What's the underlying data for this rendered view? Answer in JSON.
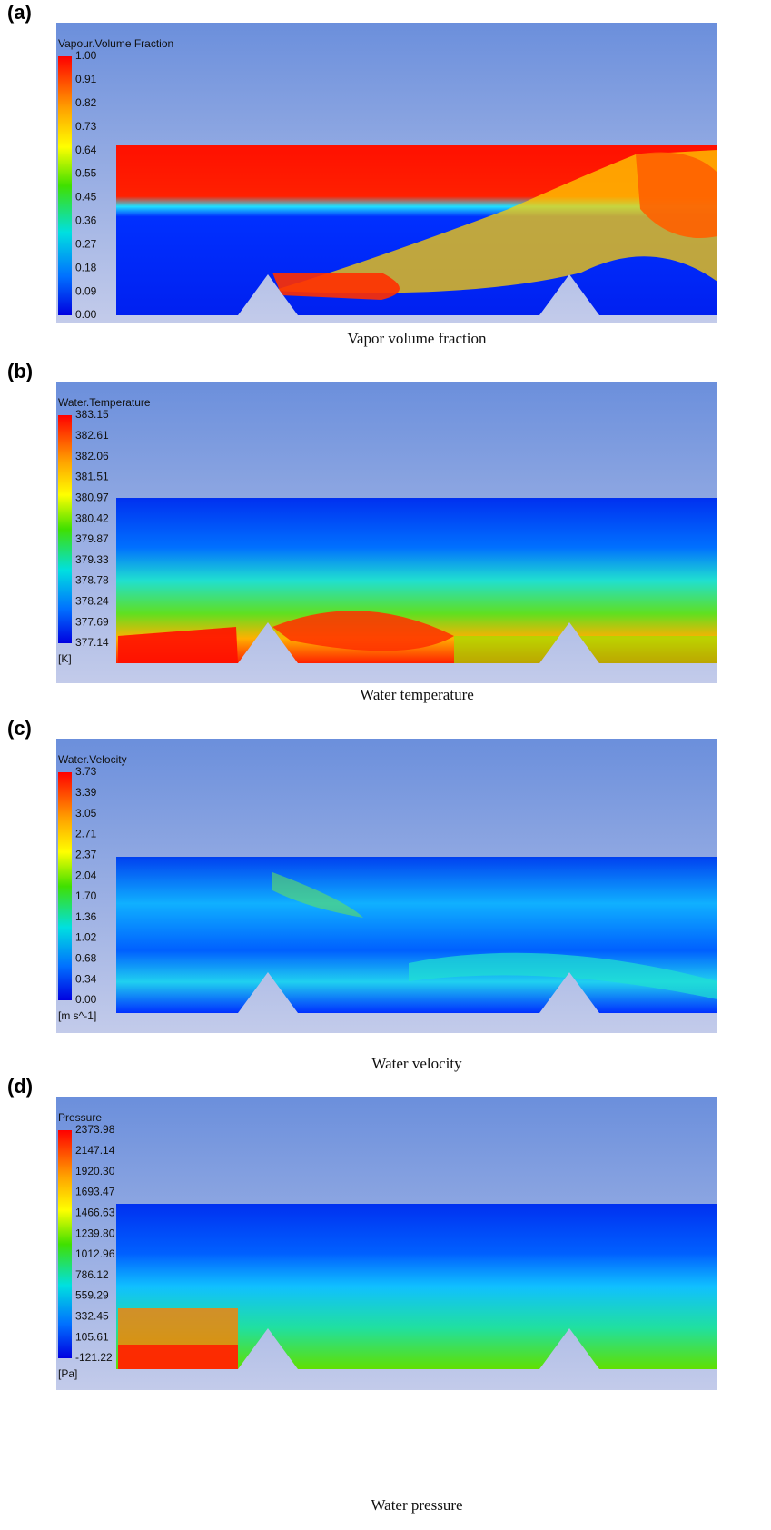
{
  "panels": [
    {
      "label": "(a)",
      "legend": {
        "title": "Vapour.Volume Fraction",
        "ticks": [
          "1.00",
          "0.91",
          "0.82",
          "0.73",
          "0.64",
          "0.55",
          "0.45",
          "0.36",
          "0.27",
          "0.18",
          "0.09",
          "0.00"
        ]
      },
      "caption": "Vapor volume fraction"
    },
    {
      "label": "(b)",
      "legend": {
        "title": "Water.Temperature",
        "ticks": [
          "383.15",
          "382.61",
          "382.06",
          "381.51",
          "380.97",
          "380.42",
          "379.87",
          "379.33",
          "378.78",
          "378.24",
          "377.69",
          "377.14"
        ],
        "unit": "[K]"
      },
      "caption": "Water temperature"
    },
    {
      "label": "(c)",
      "legend": {
        "title": "Water.Velocity",
        "ticks": [
          "3.73",
          "3.39",
          "3.05",
          "2.71",
          "2.37",
          "2.04",
          "1.70",
          "1.36",
          "1.02",
          "0.68",
          "0.34",
          "0.00"
        ],
        "unit": "[m s^-1]"
      },
      "caption": "Water velocity"
    },
    {
      "label": "(d)",
      "legend": {
        "title": "Pressure",
        "ticks": [
          "2373.98",
          "2147.14",
          "1920.30",
          "1693.47",
          "1466.63",
          "1239.80",
          "1012.96",
          "786.12",
          "559.29",
          "332.45",
          "105.61",
          "-121.22"
        ],
        "unit": "[Pa]"
      },
      "caption": "Water pressure"
    }
  ]
}
